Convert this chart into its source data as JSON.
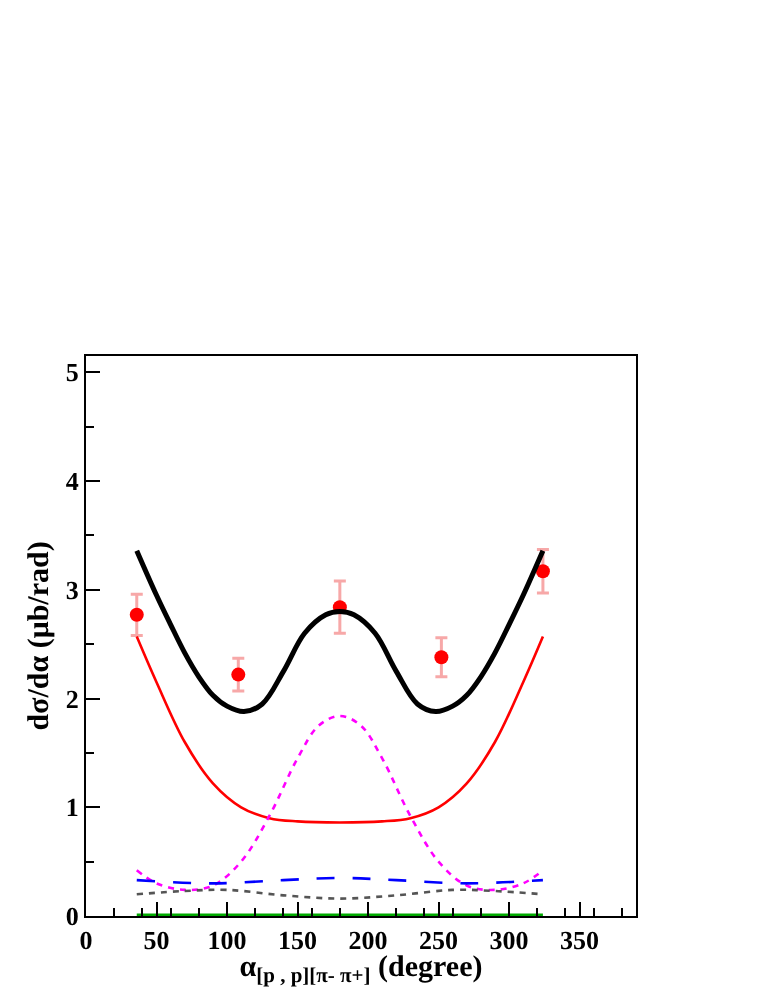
{
  "chart_data": {
    "type": "line",
    "xlabel": "α$_{[p , p][π- π+]}$ (degree)",
    "ylabel": "dσ/dα (μb/rad)",
    "xlim": [
      0,
      390
    ],
    "ylim": [
      0,
      5.15
    ],
    "xticks": [
      0,
      50,
      100,
      150,
      200,
      250,
      300,
      350
    ],
    "yticks": [
      0,
      1,
      2,
      3,
      4,
      5
    ],
    "grid": false,
    "series": [
      {
        "type": "scatter",
        "color": "#ff0000",
        "marker": "circle",
        "x": [
          36,
          108,
          180,
          252,
          324
        ],
        "values": [
          2.77,
          2.22,
          2.84,
          2.38,
          3.17
        ],
        "errors": [
          0.19,
          0.15,
          0.24,
          0.18,
          0.2
        ]
      },
      {
        "color": "#000000",
        "line_style": "solid",
        "marker": "none",
        "x": [
          36,
          50,
          60,
          70,
          80,
          90,
          100,
          112,
          125,
          140,
          155,
          170,
          180,
          190,
          205,
          220,
          235,
          248,
          260,
          270,
          280,
          290,
          300,
          310,
          324
        ],
        "values": [
          3.36,
          2.95,
          2.68,
          2.42,
          2.2,
          2.03,
          1.93,
          1.88,
          1.95,
          2.25,
          2.6,
          2.77,
          2.8,
          2.77,
          2.6,
          2.25,
          1.95,
          1.88,
          1.93,
          2.03,
          2.2,
          2.42,
          2.68,
          2.95,
          3.36
        ]
      },
      {
        "color": "#ff0000",
        "line_style": "solid",
        "marker": "none",
        "x": [
          36,
          50,
          70,
          90,
          110,
          130,
          150,
          180,
          210,
          230,
          250,
          270,
          290,
          310,
          324
        ],
        "values": [
          2.57,
          2.15,
          1.6,
          1.22,
          1.0,
          0.9,
          0.87,
          0.86,
          0.87,
          0.9,
          1.0,
          1.22,
          1.6,
          2.15,
          2.57
        ]
      },
      {
        "color": "#ff00ff",
        "line_style": "dotted",
        "marker": "none",
        "x": [
          36,
          50,
          70,
          90,
          110,
          130,
          150,
          165,
          180,
          195,
          210,
          230,
          250,
          270,
          290,
          310,
          324
        ],
        "values": [
          0.42,
          0.3,
          0.24,
          0.28,
          0.5,
          0.92,
          1.45,
          1.75,
          1.84,
          1.75,
          1.45,
          0.92,
          0.5,
          0.28,
          0.24,
          0.3,
          0.42
        ]
      },
      {
        "color": "#0000ff",
        "line_style": "dashed",
        "marker": "none",
        "x": [
          36,
          90,
          140,
          180,
          220,
          270,
          324
        ],
        "values": [
          0.33,
          0.3,
          0.33,
          0.35,
          0.33,
          0.3,
          0.33
        ]
      },
      {
        "color": "#555555",
        "line_style": "dotted",
        "marker": "none",
        "x": [
          36,
          70,
          100,
          140,
          180,
          220,
          260,
          290,
          324
        ],
        "values": [
          0.2,
          0.23,
          0.24,
          0.19,
          0.16,
          0.19,
          0.24,
          0.23,
          0.2
        ]
      },
      {
        "color": "#00aa00",
        "line_style": "solid",
        "marker": "none",
        "x": [
          36,
          324
        ],
        "values": [
          0.01,
          0.01
        ]
      }
    ]
  }
}
